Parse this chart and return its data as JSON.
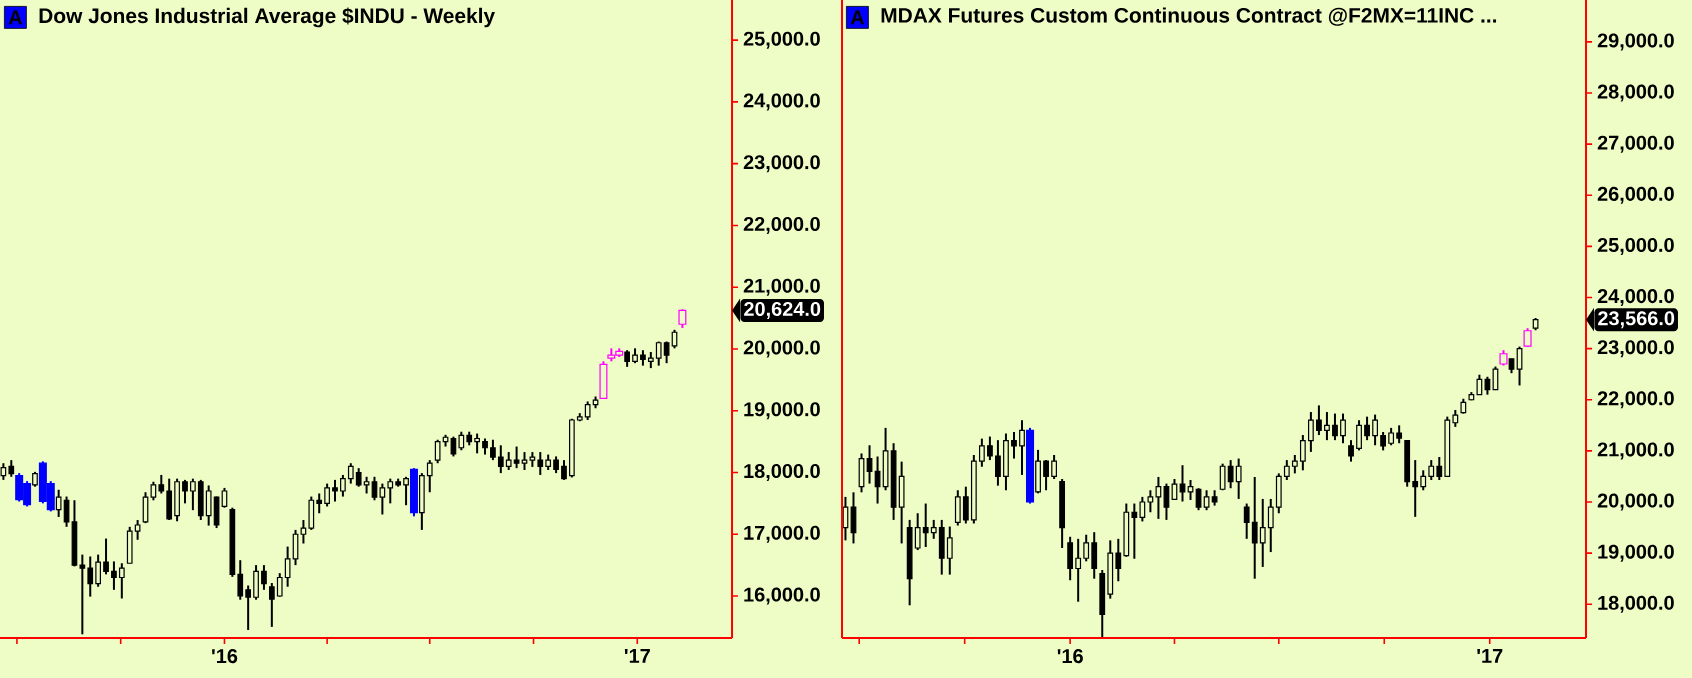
{
  "chart_data": [
    {
      "type": "candlestick",
      "title": "Dow Jones Industrial Average  $INDU - Weekly",
      "annotations": [
        "A",
        "20,624.0"
      ],
      "x": [
        "2015-06-19",
        "2015-06-26",
        "2015-07-03",
        "2015-07-10",
        "2015-07-17",
        "2015-07-24",
        "2015-07-31",
        "2015-08-07",
        "2015-08-14",
        "2015-08-21",
        "2015-08-28",
        "2015-09-04",
        "2015-09-11",
        "2015-09-18",
        "2015-09-25",
        "2015-10-02",
        "2015-10-09",
        "2015-10-16",
        "2015-10-23",
        "2015-10-30",
        "2015-11-06",
        "2015-11-13",
        "2015-11-20",
        "2015-11-27",
        "2015-12-04",
        "2015-12-11",
        "2015-12-18",
        "2015-12-25",
        "2016-01-01",
        "2016-01-08",
        "2016-01-15",
        "2016-01-22",
        "2016-01-29",
        "2016-02-05",
        "2016-02-12",
        "2016-02-19",
        "2016-02-26",
        "2016-03-04",
        "2016-03-11",
        "2016-03-18",
        "2016-03-25",
        "2016-04-01",
        "2016-04-08",
        "2016-04-15",
        "2016-04-22",
        "2016-04-29",
        "2016-05-06",
        "2016-05-13",
        "2016-05-20",
        "2016-05-27",
        "2016-06-03",
        "2016-06-10",
        "2016-06-17",
        "2016-06-24",
        "2016-07-01",
        "2016-07-08",
        "2016-07-15",
        "2016-07-22",
        "2016-07-29",
        "2016-08-05",
        "2016-08-12",
        "2016-08-19",
        "2016-08-26",
        "2016-09-02",
        "2016-09-09",
        "2016-09-16",
        "2016-09-23",
        "2016-09-30",
        "2016-10-07",
        "2016-10-14",
        "2016-10-21",
        "2016-10-28",
        "2016-11-04",
        "2016-11-11",
        "2016-11-18",
        "2016-11-25",
        "2016-12-02",
        "2016-12-09",
        "2016-12-16",
        "2016-12-23",
        "2016-12-30",
        "2017-01-06",
        "2017-01-13",
        "2017-01-20",
        "2017-01-27",
        "2017-02-03",
        "2017-02-10"
      ],
      "ohlc": [
        [
          17950,
          18150,
          17880,
          18080
        ],
        [
          18100,
          18200,
          17930,
          17980
        ],
        [
          17950,
          17990,
          17530,
          17560
        ],
        [
          17820,
          17860,
          17450,
          17480
        ],
        [
          17800,
          18010,
          17770,
          17980
        ],
        [
          18150,
          18180,
          17500,
          17530
        ],
        [
          17820,
          17860,
          17370,
          17400
        ],
        [
          17400,
          17720,
          17280,
          17600
        ],
        [
          17550,
          17610,
          17120,
          17200
        ],
        [
          17200,
          17550,
          16480,
          16500
        ],
        [
          16500,
          16670,
          15380,
          16450
        ],
        [
          16450,
          16640,
          15990,
          16200
        ],
        [
          16200,
          16670,
          16150,
          16550
        ],
        [
          16550,
          16930,
          16350,
          16400
        ],
        [
          16400,
          16560,
          16100,
          16300
        ],
        [
          16300,
          16530,
          15960,
          16450
        ],
        [
          16530,
          17120,
          16530,
          17050
        ],
        [
          17050,
          17230,
          16910,
          17150
        ],
        [
          17200,
          17680,
          17180,
          17600
        ],
        [
          17600,
          17850,
          17550,
          17800
        ],
        [
          17800,
          17960,
          17660,
          17700
        ],
        [
          17700,
          17900,
          17230,
          17250
        ],
        [
          17300,
          17900,
          17210,
          17850
        ],
        [
          17850,
          17880,
          17500,
          17700
        ],
        [
          17700,
          17900,
          17390,
          17850
        ],
        [
          17850,
          17880,
          17230,
          17300
        ],
        [
          17300,
          17790,
          17140,
          17700
        ],
        [
          17600,
          17610,
          17100,
          17150
        ],
        [
          17450,
          17750,
          17430,
          17700
        ],
        [
          17400,
          17430,
          16310,
          16350
        ],
        [
          16350,
          16580,
          15940,
          16000
        ],
        [
          16100,
          16170,
          15450,
          15980
        ],
        [
          15980,
          16500,
          15940,
          16400
        ],
        [
          16400,
          16500,
          16100,
          16200
        ],
        [
          16150,
          16210,
          15500,
          15950
        ],
        [
          16000,
          16370,
          15990,
          16300
        ],
        [
          16300,
          16800,
          16150,
          16600
        ],
        [
          16600,
          17070,
          16500,
          17000
        ],
        [
          17000,
          17230,
          16850,
          17100
        ],
        [
          17100,
          17610,
          17070,
          17550
        ],
        [
          17550,
          17660,
          17340,
          17500
        ],
        [
          17500,
          17820,
          17450,
          17750
        ],
        [
          17750,
          17880,
          17530,
          17700
        ],
        [
          17700,
          17960,
          17610,
          17900
        ],
        [
          17900,
          18150,
          17820,
          18100
        ],
        [
          18000,
          18070,
          17770,
          17800
        ],
        [
          17800,
          17930,
          17660,
          17850
        ],
        [
          17850,
          17930,
          17550,
          17600
        ],
        [
          17600,
          17820,
          17320,
          17750
        ],
        [
          17750,
          17900,
          17500,
          17850
        ],
        [
          17850,
          17900,
          17770,
          17800
        ],
        [
          17800,
          17930,
          17470,
          17900
        ],
        [
          18050,
          18070,
          17290,
          17350
        ],
        [
          17350,
          17990,
          17070,
          17950
        ],
        [
          17950,
          18200,
          17680,
          18150
        ],
        [
          18200,
          18530,
          18150,
          18500
        ],
        [
          18500,
          18610,
          18420,
          18570
        ],
        [
          18550,
          18580,
          18260,
          18300
        ],
        [
          18400,
          18660,
          18360,
          18600
        ],
        [
          18600,
          18660,
          18440,
          18500
        ],
        [
          18500,
          18630,
          18310,
          18550
        ],
        [
          18500,
          18550,
          18290,
          18400
        ],
        [
          18400,
          18530,
          18200,
          18250
        ],
        [
          18250,
          18440,
          17990,
          18100
        ],
        [
          18100,
          18330,
          18040,
          18200
        ],
        [
          18200,
          18420,
          18070,
          18150
        ],
        [
          18150,
          18330,
          18040,
          18200
        ],
        [
          18200,
          18330,
          18090,
          18250
        ],
        [
          18200,
          18330,
          17960,
          18100
        ],
        [
          18100,
          18290,
          18040,
          18200
        ],
        [
          18200,
          18260,
          17990,
          18050
        ],
        [
          18100,
          18200,
          17880,
          17900
        ],
        [
          17950,
          18870,
          17920,
          18850
        ],
        [
          18850,
          18960,
          18830,
          18900
        ],
        [
          18900,
          19150,
          18850,
          19100
        ],
        [
          19100,
          19230,
          19040,
          19170
        ],
        [
          19200,
          19800,
          19190,
          19750
        ],
        [
          19850,
          20010,
          19800,
          19900
        ],
        [
          19900,
          20010,
          19870,
          19960
        ],
        [
          19950,
          19980,
          19710,
          19800
        ],
        [
          19800,
          20010,
          19770,
          19900
        ],
        [
          19900,
          19980,
          19730,
          19830
        ],
        [
          19800,
          19950,
          19690,
          19850
        ],
        [
          19850,
          20120,
          19730,
          20100
        ],
        [
          20100,
          20120,
          19770,
          19900
        ],
        [
          20050,
          20310,
          20010,
          20270
        ],
        [
          20400,
          20640,
          20340,
          20624
        ]
      ],
      "colors": [
        "#000000",
        "#000000",
        "#0000ff",
        "#0000ff",
        "#000000",
        "#0000ff",
        "#0000ff",
        "#000000",
        "#000000",
        "#000000",
        "#000000",
        "#000000",
        "#000000",
        "#000000",
        "#000000",
        "#000000",
        "#000000",
        "#000000",
        "#000000",
        "#000000",
        "#000000",
        "#000000",
        "#000000",
        "#000000",
        "#000000",
        "#000000",
        "#000000",
        "#000000",
        "#000000",
        "#000000",
        "#000000",
        "#000000",
        "#000000",
        "#000000",
        "#000000",
        "#000000",
        "#000000",
        "#000000",
        "#000000",
        "#000000",
        "#000000",
        "#000000",
        "#000000",
        "#000000",
        "#000000",
        "#000000",
        "#000000",
        "#000000",
        "#000000",
        "#000000",
        "#000000",
        "#000000",
        "#0000ff",
        "#000000",
        "#000000",
        "#000000",
        "#000000",
        "#000000",
        "#000000",
        "#000000",
        "#000000",
        "#000000",
        "#000000",
        "#000000",
        "#000000",
        "#000000",
        "#000000",
        "#000000",
        "#000000",
        "#000000",
        "#000000",
        "#000000",
        "#000000",
        "#000000",
        "#000000",
        "#000000",
        "#ff00ff",
        "#ff00ff",
        "#ff00ff",
        "#000000",
        "#000000",
        "#000000",
        "#000000",
        "#000000",
        "#000000",
        "#000000",
        "#ff00ff"
      ],
      "xlim": [
        "2015-06-16",
        "2017-03-26"
      ],
      "xticks": [
        {
          "value": "2015-07-01",
          "label": null
        },
        {
          "value": "2015-10-01",
          "label": null
        },
        {
          "value": "2016-01-01",
          "label": "'16"
        },
        {
          "value": "2016-04-01",
          "label": null
        },
        {
          "value": "2016-07-01",
          "label": null
        },
        {
          "value": "2016-10-01",
          "label": null
        },
        {
          "value": "2017-01-01",
          "label": "'17"
        }
      ],
      "ylim": [
        15320,
        25650
      ],
      "yticks": [
        {
          "value": 16000,
          "label": "16,000.0"
        },
        {
          "value": 17000,
          "label": "17,000.0"
        },
        {
          "value": 18000,
          "label": "18,000.0"
        },
        {
          "value": 19000,
          "label": "19,000.0"
        },
        {
          "value": 20000,
          "label": "20,000.0"
        },
        {
          "value": 21000,
          "label": "21,000.0"
        },
        {
          "value": 22000,
          "label": "22,000.0"
        },
        {
          "value": 23000,
          "label": "23,000.0"
        },
        {
          "value": 24000,
          "label": "24,000.0"
        },
        {
          "value": 25000,
          "label": "25,000.0"
        }
      ]
    },
    {
      "type": "candlestick",
      "title": "MDAX Futures Custom Continuous Contract  @F2MX=11INC ...",
      "annotations": [
        "A",
        "23,566.0"
      ],
      "x": [
        "2015-06-19",
        "2015-06-26",
        "2015-07-03",
        "2015-07-10",
        "2015-07-17",
        "2015-07-24",
        "2015-07-31",
        "2015-08-07",
        "2015-08-14",
        "2015-08-21",
        "2015-08-28",
        "2015-09-04",
        "2015-09-11",
        "2015-09-18",
        "2015-09-25",
        "2015-10-02",
        "2015-10-09",
        "2015-10-16",
        "2015-10-23",
        "2015-10-30",
        "2015-11-06",
        "2015-11-13",
        "2015-11-20",
        "2015-11-27",
        "2015-12-04",
        "2015-12-11",
        "2015-12-18",
        "2015-12-25",
        "2016-01-01",
        "2016-01-08",
        "2016-01-15",
        "2016-01-22",
        "2016-01-29",
        "2016-02-05",
        "2016-02-12",
        "2016-02-19",
        "2016-02-26",
        "2016-03-04",
        "2016-03-11",
        "2016-03-18",
        "2016-03-25",
        "2016-04-01",
        "2016-04-08",
        "2016-04-15",
        "2016-04-22",
        "2016-04-29",
        "2016-05-06",
        "2016-05-13",
        "2016-05-20",
        "2016-05-27",
        "2016-06-03",
        "2016-06-10",
        "2016-06-17",
        "2016-06-24",
        "2016-07-01",
        "2016-07-08",
        "2016-07-15",
        "2016-07-22",
        "2016-07-29",
        "2016-08-05",
        "2016-08-12",
        "2016-08-19",
        "2016-08-26",
        "2016-09-02",
        "2016-09-09",
        "2016-09-16",
        "2016-09-23",
        "2016-09-30",
        "2016-10-07",
        "2016-10-14",
        "2016-10-21",
        "2016-10-28",
        "2016-11-04",
        "2016-11-11",
        "2016-11-18",
        "2016-11-25",
        "2016-12-02",
        "2016-12-09",
        "2016-12-16",
        "2016-12-23",
        "2016-12-30",
        "2017-01-06",
        "2017-01-13",
        "2017-01-20",
        "2017-01-27",
        "2017-02-03",
        "2017-02-10"
      ],
      "ohlc": [
        [
          19500,
          20100,
          19250,
          19900
        ],
        [
          19900,
          20190,
          19190,
          19400
        ],
        [
          20300,
          20950,
          20190,
          20850
        ],
        [
          20850,
          21110,
          20360,
          20600
        ],
        [
          20600,
          20890,
          19970,
          20300
        ],
        [
          20300,
          21450,
          20230,
          21000
        ],
        [
          21000,
          21150,
          19650,
          19900
        ],
        [
          19900,
          20790,
          19190,
          20500
        ],
        [
          19500,
          19650,
          17980,
          18500
        ],
        [
          19100,
          19780,
          19060,
          19500
        ],
        [
          19500,
          19970,
          19120,
          19400
        ],
        [
          19400,
          19650,
          19280,
          19500
        ],
        [
          19500,
          19650,
          18580,
          18900
        ],
        [
          18900,
          19520,
          18580,
          19300
        ],
        [
          19600,
          20230,
          19540,
          20100
        ],
        [
          20100,
          20300,
          19580,
          19650
        ],
        [
          19650,
          20920,
          19580,
          20800
        ],
        [
          20800,
          21240,
          20690,
          21100
        ],
        [
          21100,
          21280,
          20820,
          20900
        ],
        [
          20900,
          21210,
          20320,
          20500
        ],
        [
          20500,
          21340,
          20230,
          21200
        ],
        [
          21200,
          21370,
          20850,
          21100
        ],
        [
          21100,
          21600,
          20530,
          21400
        ],
        [
          21400,
          21450,
          19970,
          20000
        ],
        [
          20200,
          21020,
          20170,
          20800
        ],
        [
          20800,
          20820,
          20230,
          20500
        ],
        [
          20500,
          20920,
          20450,
          20800
        ],
        [
          20400,
          20450,
          19100,
          19500
        ],
        [
          19200,
          19320,
          18470,
          18700
        ],
        [
          18700,
          19280,
          18050,
          18900
        ],
        [
          18900,
          19360,
          18840,
          19200
        ],
        [
          19200,
          19410,
          18500,
          18700
        ],
        [
          18600,
          18670,
          17360,
          17800
        ],
        [
          18200,
          19250,
          18110,
          19000
        ],
        [
          19000,
          19280,
          18450,
          18700
        ],
        [
          18950,
          19970,
          18930,
          19800
        ],
        [
          19800,
          19970,
          18890,
          19700
        ],
        [
          19700,
          20100,
          19620,
          20000
        ],
        [
          20000,
          20230,
          19800,
          20100
        ],
        [
          20100,
          20490,
          19670,
          20300
        ],
        [
          20300,
          20360,
          19650,
          19900
        ],
        [
          20050,
          20450,
          20040,
          20350
        ],
        [
          20350,
          20720,
          20010,
          20200
        ],
        [
          20200,
          20430,
          20040,
          20300
        ],
        [
          20250,
          20270,
          19840,
          19900
        ],
        [
          19900,
          20230,
          19840,
          20100
        ],
        [
          20100,
          20230,
          19930,
          20000
        ],
        [
          20250,
          20750,
          20230,
          20700
        ],
        [
          20700,
          20820,
          20270,
          20400
        ],
        [
          20400,
          20850,
          20060,
          20700
        ],
        [
          19900,
          19970,
          19280,
          19600
        ],
        [
          19600,
          20490,
          18500,
          19200
        ],
        [
          19200,
          20060,
          18730,
          19500
        ],
        [
          19500,
          20060,
          19020,
          19900
        ],
        [
          19900,
          20560,
          19780,
          20500
        ],
        [
          20500,
          20820,
          20430,
          20700
        ],
        [
          20700,
          20920,
          20560,
          20800
        ],
        [
          20800,
          21310,
          20620,
          21200
        ],
        [
          21200,
          21760,
          20980,
          21600
        ],
        [
          21600,
          21890,
          21310,
          21400
        ],
        [
          21400,
          21760,
          21210,
          21500
        ],
        [
          21500,
          21730,
          21210,
          21300
        ],
        [
          21300,
          21730,
          21150,
          21600
        ],
        [
          21100,
          21210,
          20790,
          20900
        ],
        [
          21050,
          21600,
          21010,
          21500
        ],
        [
          21500,
          21670,
          21210,
          21300
        ],
        [
          21300,
          21710,
          21110,
          21600
        ],
        [
          21300,
          21370,
          21010,
          21100
        ],
        [
          21150,
          21450,
          21110,
          21350
        ],
        [
          21350,
          21500,
          21150,
          21250
        ],
        [
          21200,
          21210,
          20300,
          20400
        ],
        [
          20400,
          20820,
          19710,
          20300
        ],
        [
          20300,
          20620,
          20230,
          20500
        ],
        [
          20500,
          20820,
          20430,
          20700
        ],
        [
          20700,
          20880,
          20430,
          20500
        ],
        [
          20500,
          21670,
          20490,
          21600
        ],
        [
          21550,
          21800,
          21470,
          21700
        ],
        [
          21750,
          22020,
          21730,
          21950
        ],
        [
          22000,
          22150,
          21990,
          22100
        ],
        [
          22100,
          22490,
          22100,
          22400
        ],
        [
          22400,
          22450,
          22100,
          22200
        ],
        [
          22200,
          22650,
          22190,
          22600
        ],
        [
          22700,
          22970,
          22670,
          22900
        ],
        [
          22800,
          22800,
          22520,
          22600
        ],
        [
          22600,
          23040,
          22280,
          23000
        ],
        [
          23050,
          23400,
          23040,
          23350
        ],
        [
          23400,
          23600,
          23360,
          23566
        ]
      ],
      "colors": [
        "#000000",
        "#000000",
        "#000000",
        "#000000",
        "#000000",
        "#000000",
        "#000000",
        "#000000",
        "#000000",
        "#000000",
        "#000000",
        "#000000",
        "#000000",
        "#000000",
        "#000000",
        "#000000",
        "#000000",
        "#000000",
        "#000000",
        "#000000",
        "#000000",
        "#000000",
        "#000000",
        "#0000ff",
        "#000000",
        "#000000",
        "#000000",
        "#000000",
        "#000000",
        "#000000",
        "#000000",
        "#000000",
        "#000000",
        "#000000",
        "#000000",
        "#000000",
        "#000000",
        "#000000",
        "#000000",
        "#000000",
        "#000000",
        "#000000",
        "#000000",
        "#000000",
        "#000000",
        "#000000",
        "#000000",
        "#000000",
        "#000000",
        "#000000",
        "#000000",
        "#000000",
        "#000000",
        "#000000",
        "#000000",
        "#000000",
        "#000000",
        "#000000",
        "#000000",
        "#000000",
        "#000000",
        "#000000",
        "#000000",
        "#000000",
        "#000000",
        "#000000",
        "#000000",
        "#000000",
        "#000000",
        "#000000",
        "#000000",
        "#000000",
        "#000000",
        "#000000",
        "#000000",
        "#000000",
        "#000000",
        "#000000",
        "#000000",
        "#000000",
        "#000000",
        "#000000",
        "#ff00ff",
        "#000000",
        "#000000",
        "#ff00ff",
        "#000000"
      ],
      "xlim": [
        "2015-06-16",
        "2017-03-26"
      ],
      "xticks": [
        {
          "value": "2015-07-01",
          "label": null
        },
        {
          "value": "2015-10-01",
          "label": null
        },
        {
          "value": "2016-01-01",
          "label": "'16"
        },
        {
          "value": "2016-04-01",
          "label": null
        },
        {
          "value": "2016-07-01",
          "label": null
        },
        {
          "value": "2016-10-01",
          "label": null
        },
        {
          "value": "2017-01-01",
          "label": "'17"
        }
      ],
      "ylim": [
        17340,
        29820
      ],
      "yticks": [
        {
          "value": 18000,
          "label": "18,000.0"
        },
        {
          "value": 19000,
          "label": "19,000.0"
        },
        {
          "value": 20000,
          "label": "20,000.0"
        },
        {
          "value": 21000,
          "label": "21,000.0"
        },
        {
          "value": 22000,
          "label": "22,000.0"
        },
        {
          "value": 23000,
          "label": "23,000.0"
        },
        {
          "value": 24000,
          "label": "24,000.0"
        },
        {
          "value": 25000,
          "label": "25,000.0"
        },
        {
          "value": 26000,
          "label": "26,000.0"
        },
        {
          "value": 27000,
          "label": "27,000.0"
        },
        {
          "value": 28000,
          "label": "28,000.0"
        },
        {
          "value": 29000,
          "label": "29,000.0"
        }
      ]
    }
  ]
}
